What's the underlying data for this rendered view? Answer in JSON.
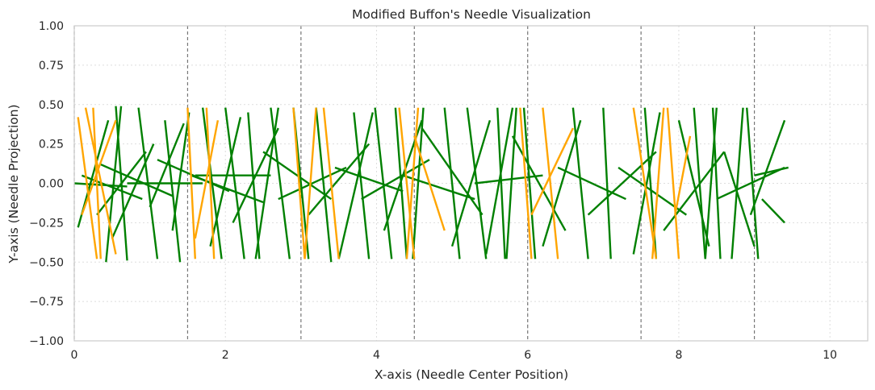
{
  "chart_data": {
    "type": "line",
    "title": "Modified Buffon's Needle Visualization",
    "xlabel": "X-axis (Needle Center Position)",
    "ylabel": "Y-axis (Needle Projection)",
    "xlim": [
      0,
      10.5
    ],
    "ylim": [
      -1.0,
      1.0
    ],
    "xticks": [
      "0",
      "2",
      "4",
      "6",
      "8",
      "10"
    ],
    "yticks": [
      "−1.00",
      "−0.75",
      "−0.50",
      "−0.25",
      "0.00",
      "0.25",
      "0.50",
      "0.75",
      "1.00"
    ],
    "grid": true,
    "vertical_line_positions": [
      0,
      1.5,
      3.0,
      4.5,
      6.0,
      7.5,
      9.0
    ],
    "needle_length": 1.0,
    "series": [
      {
        "color": "#008000",
        "segments": [
          [
            0.05,
            -0.28,
            0.45,
            0.4
          ],
          [
            0.0,
            0.0,
            0.7,
            -0.02
          ],
          [
            0.1,
            0.05,
            0.9,
            -0.1
          ],
          [
            0.3,
            -0.2,
            0.95,
            0.2
          ],
          [
            0.42,
            -0.5,
            0.62,
            0.49
          ],
          [
            0.55,
            0.49,
            0.7,
            -0.49
          ],
          [
            0.35,
            0.12,
            1.3,
            -0.08
          ],
          [
            0.5,
            -0.35,
            1.05,
            0.25
          ],
          [
            0.85,
            0.48,
            1.1,
            -0.48
          ],
          [
            0.7,
            0.0,
            1.7,
            0.0
          ],
          [
            1.0,
            -0.15,
            1.45,
            0.38
          ],
          [
            1.2,
            0.4,
            1.4,
            -0.5
          ],
          [
            1.3,
            -0.3,
            1.52,
            0.45
          ],
          [
            1.1,
            0.15,
            2.05,
            -0.05
          ],
          [
            1.55,
            0.05,
            2.5,
            -0.12
          ],
          [
            1.7,
            0.48,
            1.95,
            -0.48
          ],
          [
            1.8,
            -0.4,
            2.2,
            0.42
          ],
          [
            1.6,
            0.05,
            2.6,
            0.05
          ],
          [
            2.0,
            0.48,
            2.25,
            -0.48
          ],
          [
            2.1,
            -0.25,
            2.7,
            0.35
          ],
          [
            2.3,
            0.45,
            2.45,
            -0.48
          ],
          [
            2.4,
            -0.48,
            2.7,
            0.48
          ],
          [
            2.5,
            0.2,
            3.4,
            -0.1
          ],
          [
            2.6,
            0.48,
            2.85,
            -0.48
          ],
          [
            2.7,
            -0.1,
            3.6,
            0.1
          ],
          [
            2.9,
            0.48,
            3.1,
            -0.48
          ],
          [
            3.1,
            -0.2,
            3.9,
            0.25
          ],
          [
            3.2,
            0.48,
            3.4,
            -0.5
          ],
          [
            3.45,
            0.1,
            4.35,
            -0.05
          ],
          [
            3.5,
            -0.48,
            3.95,
            0.45
          ],
          [
            3.7,
            0.45,
            3.9,
            -0.48
          ],
          [
            3.8,
            -0.1,
            4.7,
            0.15
          ],
          [
            3.98,
            0.48,
            4.2,
            -0.48
          ],
          [
            4.1,
            -0.3,
            4.6,
            0.4
          ],
          [
            4.25,
            0.48,
            4.4,
            -0.48
          ],
          [
            4.35,
            0.05,
            5.3,
            -0.1
          ],
          [
            4.48,
            -0.48,
            4.62,
            0.48
          ],
          [
            4.6,
            0.35,
            5.4,
            -0.2
          ],
          [
            4.9,
            0.48,
            5.1,
            -0.48
          ],
          [
            5.0,
            -0.4,
            5.5,
            0.4
          ],
          [
            5.2,
            0.48,
            5.45,
            -0.48
          ],
          [
            5.3,
            0.0,
            6.2,
            0.05
          ],
          [
            5.45,
            -0.45,
            5.8,
            0.48
          ],
          [
            5.6,
            0.48,
            5.7,
            -0.48
          ],
          [
            5.72,
            -0.48,
            5.85,
            0.48
          ],
          [
            5.8,
            0.3,
            6.5,
            -0.3
          ],
          [
            5.95,
            0.48,
            6.1,
            -0.48
          ],
          [
            6.2,
            -0.4,
            6.7,
            0.4
          ],
          [
            6.4,
            0.1,
            7.3,
            -0.1
          ],
          [
            6.6,
            0.48,
            6.8,
            -0.48
          ],
          [
            6.8,
            -0.2,
            7.7,
            0.2
          ],
          [
            7.0,
            0.48,
            7.1,
            -0.48
          ],
          [
            7.2,
            0.1,
            8.1,
            -0.2
          ],
          [
            7.4,
            -0.45,
            7.75,
            0.45
          ],
          [
            7.55,
            0.48,
            7.7,
            -0.48
          ],
          [
            7.8,
            -0.3,
            8.6,
            0.2
          ],
          [
            8.0,
            0.4,
            8.4,
            -0.4
          ],
          [
            8.2,
            0.48,
            8.35,
            -0.48
          ],
          [
            8.35,
            -0.48,
            8.5,
            0.48
          ],
          [
            8.45,
            0.48,
            8.55,
            -0.48
          ],
          [
            8.5,
            -0.1,
            9.4,
            0.1
          ],
          [
            8.6,
            0.2,
            9.0,
            -0.4
          ],
          [
            8.7,
            -0.48,
            8.85,
            0.48
          ],
          [
            8.9,
            0.48,
            9.05,
            -0.48
          ],
          [
            9.0,
            0.05,
            9.45,
            0.1
          ],
          [
            8.95,
            -0.2,
            9.4,
            0.4
          ],
          [
            9.1,
            -0.1,
            9.4,
            -0.25
          ]
        ]
      },
      {
        "color": "#FFA500",
        "segments": [
          [
            0.05,
            0.42,
            0.3,
            -0.48
          ],
          [
            0.1,
            -0.2,
            0.55,
            0.4
          ],
          [
            0.15,
            0.48,
            0.55,
            -0.45
          ],
          [
            0.25,
            0.48,
            0.35,
            -0.48
          ],
          [
            1.5,
            0.48,
            1.6,
            -0.48
          ],
          [
            1.6,
            -0.35,
            1.9,
            0.4
          ],
          [
            1.75,
            0.48,
            1.85,
            -0.48
          ],
          [
            2.9,
            0.48,
            3.05,
            -0.48
          ],
          [
            3.05,
            -0.48,
            3.2,
            0.48
          ],
          [
            3.3,
            0.48,
            3.5,
            -0.48
          ],
          [
            4.3,
            0.48,
            4.5,
            -0.48
          ],
          [
            4.4,
            -0.48,
            4.55,
            0.48
          ],
          [
            4.5,
            0.3,
            4.9,
            -0.3
          ],
          [
            5.9,
            0.48,
            6.05,
            -0.48
          ],
          [
            6.05,
            -0.2,
            6.6,
            0.35
          ],
          [
            6.2,
            0.48,
            6.4,
            -0.48
          ],
          [
            7.4,
            0.48,
            7.7,
            -0.48
          ],
          [
            7.65,
            -0.48,
            7.8,
            0.48
          ],
          [
            7.85,
            0.48,
            8.0,
            -0.48
          ],
          [
            7.95,
            -0.2,
            8.15,
            0.3
          ]
        ]
      }
    ]
  }
}
